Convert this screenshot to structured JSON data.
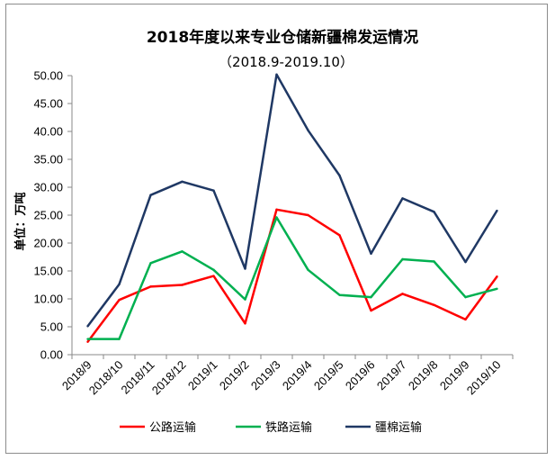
{
  "chart_data": {
    "type": "line",
    "title": "2018年度以来专业仓储新疆棉发运情况",
    "subtitle": "（2018.9-2019.10）",
    "ylabel": "单位：万吨",
    "xlabel": "",
    "ylim": [
      0,
      50
    ],
    "yticks": [
      "0.00",
      "5.00",
      "10.00",
      "15.00",
      "20.00",
      "25.00",
      "30.00",
      "35.00",
      "40.00",
      "45.00",
      "50.00"
    ],
    "categories": [
      "2018/9",
      "2018/10",
      "2018/11",
      "2018/12",
      "2019/1",
      "2019/2",
      "2019/3",
      "2019/4",
      "2019/5",
      "2019/6",
      "2019/7",
      "2019/8",
      "2019/9",
      "2019/10"
    ],
    "grid": false,
    "legend_position": "bottom",
    "series": [
      {
        "name": "公路运输",
        "color": "#ff0000",
        "values": [
          2.3,
          9.8,
          12.2,
          12.5,
          14.1,
          5.6,
          26.0,
          25.0,
          21.4,
          7.9,
          10.9,
          8.9,
          6.3,
          14.0
        ]
      },
      {
        "name": "铁路运输",
        "color": "#00b050",
        "values": [
          2.8,
          2.8,
          16.4,
          18.5,
          15.2,
          9.9,
          24.6,
          15.2,
          10.7,
          10.3,
          17.1,
          16.7,
          10.3,
          11.8
        ]
      },
      {
        "name": "疆棉运输",
        "color": "#1f3864",
        "values": [
          5.1,
          12.6,
          28.6,
          31.0,
          29.4,
          15.4,
          50.2,
          40.2,
          32.1,
          18.1,
          28.0,
          25.6,
          16.6,
          25.8
        ]
      }
    ]
  }
}
